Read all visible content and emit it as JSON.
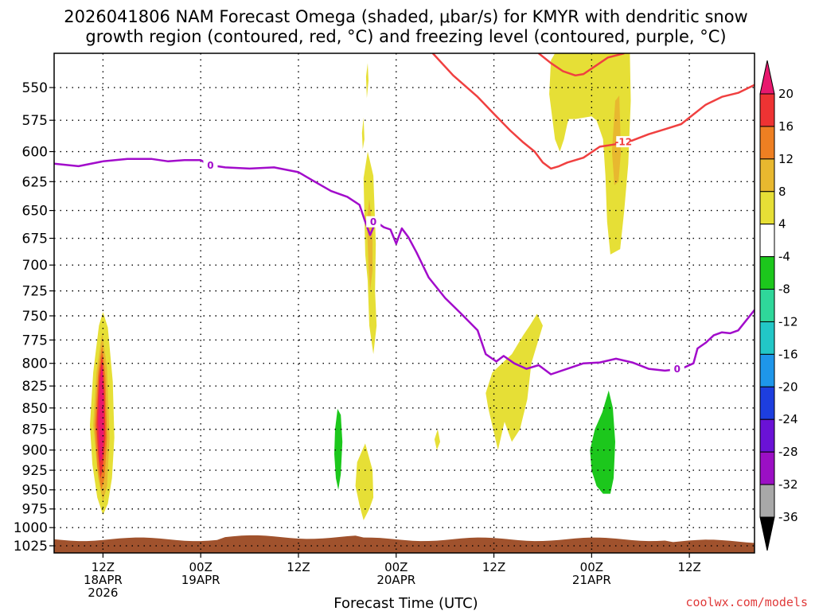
{
  "chart_data": {
    "type": "heatmap",
    "title_lines": [
      "2026041806 NAM Forecast Omega (shaded, μbar/s) for KMYR with dendritic snow",
      "growth region (contoured, red, °C) and freezing level (contoured, purple, °C)"
    ],
    "xlabel": "Forecast Time (UTC)",
    "x_range_hours": [
      0,
      86
    ],
    "y_range_hpa": [
      525,
      1035
    ],
    "y_ticks": [
      550,
      575,
      600,
      625,
      650,
      675,
      700,
      725,
      750,
      775,
      800,
      825,
      850,
      875,
      900,
      925,
      950,
      975,
      1000,
      1025
    ],
    "x_ticks": [
      {
        "hour": 6,
        "lines": [
          "12Z",
          "18APR",
          "2026"
        ]
      },
      {
        "hour": 18,
        "lines": [
          "00Z",
          "19APR"
        ]
      },
      {
        "hour": 30,
        "lines": [
          "12Z"
        ]
      },
      {
        "hour": 42,
        "lines": [
          "00Z",
          "20APR"
        ]
      },
      {
        "hour": 54,
        "lines": [
          "12Z"
        ]
      },
      {
        "hour": 66,
        "lines": [
          "00Z",
          "21APR"
        ]
      },
      {
        "hour": 78,
        "lines": [
          "12Z"
        ]
      }
    ],
    "colorbar": {
      "labels": [
        "20",
        "16",
        "12",
        "8",
        "4",
        "-4",
        "-8",
        "-12",
        "-16",
        "-20",
        "-24",
        "-28",
        "-32",
        "-36"
      ],
      "levels": [
        20,
        16,
        12,
        8,
        4,
        -4,
        -8,
        -12,
        -16,
        -20,
        -24,
        -28,
        -32,
        -36
      ],
      "colors": [
        "#e8186e",
        "#ee3333",
        "#ee7f22",
        "#e8b82f",
        "#e6df36",
        "#ffffff",
        "#1cc71c",
        "#2fd79a",
        "#22c7c7",
        "#1e96ea",
        "#1d3edf",
        "#6a12d6",
        "#9b0fc4",
        "#a8a8a8",
        "#000000"
      ]
    },
    "freezing_level": {
      "label": "0",
      "color": "#a20ccb",
      "points": [
        [
          0,
          610
        ],
        [
          3,
          612
        ],
        [
          6,
          608
        ],
        [
          9,
          606
        ],
        [
          12,
          606
        ],
        [
          14,
          608
        ],
        [
          16,
          607
        ],
        [
          18,
          607
        ],
        [
          19,
          611
        ],
        [
          21,
          613
        ],
        [
          24,
          614
        ],
        [
          27,
          613
        ],
        [
          30,
          617
        ],
        [
          32,
          625
        ],
        [
          34,
          633
        ],
        [
          36,
          638
        ],
        [
          37.5,
          645
        ],
        [
          38.2,
          660
        ],
        [
          38.8,
          672
        ],
        [
          39.5,
          660
        ],
        [
          40.5,
          665
        ],
        [
          41.3,
          667
        ],
        [
          42,
          680
        ],
        [
          42.7,
          666
        ],
        [
          43.5,
          674
        ],
        [
          44.5,
          688
        ],
        [
          46,
          712
        ],
        [
          48,
          732
        ],
        [
          50,
          748
        ],
        [
          52,
          765
        ],
        [
          53,
          790
        ],
        [
          54.3,
          798
        ],
        [
          55.2,
          792
        ],
        [
          56.5,
          800
        ],
        [
          58,
          806
        ],
        [
          59.5,
          802
        ],
        [
          61,
          812
        ],
        [
          63,
          806
        ],
        [
          65,
          800
        ],
        [
          67,
          799
        ],
        [
          69,
          795
        ],
        [
          71,
          799
        ],
        [
          73,
          806
        ],
        [
          75,
          808
        ],
        [
          77,
          806
        ],
        [
          78.5,
          800
        ],
        [
          79,
          784
        ],
        [
          80,
          778
        ],
        [
          81,
          770
        ],
        [
          82,
          767
        ],
        [
          83,
          768
        ],
        [
          84,
          765
        ],
        [
          86,
          744
        ]
      ]
    },
    "dgz_minus12": {
      "label": "-12",
      "color": "#f04040",
      "points": [
        [
          46.5,
          525
        ],
        [
          49,
          541
        ],
        [
          52,
          557
        ],
        [
          54,
          570
        ],
        [
          56,
          583
        ],
        [
          57.5,
          592
        ],
        [
          59,
          600
        ],
        [
          60,
          609
        ],
        [
          61,
          614
        ],
        [
          62,
          612
        ],
        [
          63,
          609
        ],
        [
          65,
          605
        ],
        [
          67,
          596
        ],
        [
          69,
          594
        ],
        [
          71,
          591
        ],
        [
          73,
          586
        ],
        [
          75,
          582
        ],
        [
          77,
          578
        ],
        [
          78,
          573
        ],
        [
          80,
          563
        ],
        [
          82,
          557
        ],
        [
          84,
          554
        ],
        [
          86,
          548
        ]
      ]
    },
    "dgz_top": {
      "color": "#f04040",
      "points": [
        [
          59.5,
          525
        ],
        [
          61,
          532
        ],
        [
          62.5,
          538
        ],
        [
          64,
          541
        ],
        [
          65,
          540
        ],
        [
          66.5,
          534
        ],
        [
          68,
          528
        ],
        [
          70,
          525
        ]
      ]
    },
    "omega_regions": [
      {
        "level": "4",
        "points": [
          [
            4.4,
            870
          ],
          [
            4.8,
            810
          ],
          [
            5.5,
            760
          ],
          [
            6.0,
            746
          ],
          [
            6.6,
            762
          ],
          [
            7.2,
            820
          ],
          [
            7.4,
            885
          ],
          [
            7.1,
            935
          ],
          [
            6.6,
            968
          ],
          [
            6.0,
            983
          ],
          [
            5.3,
            960
          ],
          [
            4.7,
            918
          ]
        ]
      },
      {
        "level": "8",
        "points": [
          [
            4.8,
            870
          ],
          [
            5.2,
            810
          ],
          [
            5.9,
            768
          ],
          [
            6.5,
            805
          ],
          [
            6.8,
            885
          ],
          [
            6.5,
            945
          ],
          [
            6.0,
            965
          ],
          [
            5.4,
            935
          ]
        ]
      },
      {
        "level": "12",
        "points": [
          [
            5.0,
            870
          ],
          [
            5.4,
            810
          ],
          [
            5.9,
            780
          ],
          [
            6.3,
            815
          ],
          [
            6.5,
            885
          ],
          [
            6.2,
            935
          ],
          [
            5.8,
            950
          ],
          [
            5.3,
            920
          ]
        ]
      },
      {
        "level": "16",
        "points": [
          [
            5.2,
            870
          ],
          [
            5.5,
            815
          ],
          [
            5.9,
            790
          ],
          [
            6.2,
            830
          ],
          [
            6.3,
            885
          ],
          [
            6.0,
            920
          ],
          [
            5.7,
            935
          ],
          [
            5.4,
            905
          ]
        ]
      },
      {
        "level": "20",
        "points": [
          [
            5.4,
            865
          ],
          [
            5.6,
            820
          ],
          [
            5.9,
            800
          ],
          [
            6.1,
            840
          ],
          [
            6.1,
            885
          ],
          [
            5.9,
            910
          ],
          [
            5.6,
            915
          ]
        ]
      },
      {
        "level": "-4",
        "points": [
          [
            32.5,
            748
          ],
          [
            33.5,
            734
          ],
          [
            34.2,
            722
          ],
          [
            34.4,
            745
          ],
          [
            34.4,
            790
          ],
          [
            35.3,
            848
          ],
          [
            36.0,
            862
          ],
          [
            36.8,
            888
          ],
          [
            36.4,
            922
          ],
          [
            36.0,
            940
          ],
          [
            36.2,
            960
          ],
          [
            35.7,
            975
          ],
          [
            35.0,
            987
          ],
          [
            34.5,
            975
          ],
          [
            34.0,
            952
          ],
          [
            33.8,
            922
          ],
          [
            33.5,
            885
          ],
          [
            33.3,
            860
          ],
          [
            32.6,
            842
          ],
          [
            31.2,
            830
          ],
          [
            30.8,
            790
          ],
          [
            31.0,
            764
          ],
          [
            31.5,
            753
          ]
        ]
      },
      {
        "level": "-8",
        "points": [
          [
            34.5,
            875
          ],
          [
            34.8,
            851
          ],
          [
            35.2,
            858
          ],
          [
            35.4,
            890
          ],
          [
            35.2,
            930
          ],
          [
            34.9,
            950
          ],
          [
            34.6,
            935
          ],
          [
            34.4,
            905
          ]
        ]
      },
      {
        "level": "-4",
        "points": [
          [
            33.8,
            640
          ],
          [
            34.2,
            605
          ],
          [
            34.6,
            598
          ],
          [
            34.9,
            640
          ],
          [
            34.7,
            675
          ],
          [
            34.3,
            682
          ],
          [
            33.9,
            672
          ]
        ]
      },
      {
        "level": "4",
        "points": [
          [
            38.0,
            622
          ],
          [
            38.5,
            600
          ],
          [
            39.2,
            620
          ],
          [
            39.5,
            680
          ],
          [
            39.4,
            725
          ],
          [
            39.6,
            760
          ],
          [
            39.2,
            790
          ],
          [
            38.7,
            760
          ],
          [
            38.5,
            715
          ],
          [
            38.2,
            690
          ]
        ]
      },
      {
        "level": "8",
        "points": [
          [
            38.4,
            660
          ],
          [
            38.7,
            640
          ],
          [
            39.1,
            665
          ],
          [
            39.1,
            705
          ],
          [
            38.8,
            725
          ],
          [
            38.6,
            700
          ]
        ]
      },
      {
        "level": "-4",
        "points": [
          [
            40.0,
            742
          ],
          [
            40.4,
            718
          ],
          [
            40.8,
            740
          ],
          [
            41.0,
            770
          ],
          [
            40.8,
            800
          ],
          [
            40.4,
            790
          ],
          [
            40.1,
            768
          ]
        ]
      },
      {
        "level": "-4",
        "points": [
          [
            41.5,
            690
          ],
          [
            41.8,
            658
          ],
          [
            42.3,
            665
          ],
          [
            42.6,
            705
          ],
          [
            42.5,
            755
          ],
          [
            42.1,
            778
          ],
          [
            41.7,
            760
          ],
          [
            41.5,
            725
          ]
        ]
      },
      {
        "level": "4",
        "points": [
          [
            37.2,
            915
          ],
          [
            38.2,
            892
          ],
          [
            39.1,
            925
          ],
          [
            39.2,
            960
          ],
          [
            38.7,
            975
          ],
          [
            38.0,
            990
          ],
          [
            37.5,
            970
          ],
          [
            37.0,
            945
          ]
        ]
      },
      {
        "level": "4",
        "points": [
          [
            38.3,
            542
          ],
          [
            38.5,
            532
          ],
          [
            38.6,
            545
          ],
          [
            38.4,
            558
          ]
        ]
      },
      {
        "level": "4",
        "points": [
          [
            37.8,
            585
          ],
          [
            38.0,
            573
          ],
          [
            38.1,
            590
          ],
          [
            37.9,
            598
          ]
        ]
      },
      {
        "level": "4",
        "points": [
          [
            46.7,
            887
          ],
          [
            47.1,
            875
          ],
          [
            47.4,
            890
          ],
          [
            47.0,
            900
          ]
        ]
      },
      {
        "level": "4",
        "points": [
          [
            53.0,
            833
          ],
          [
            53.8,
            810
          ],
          [
            55.0,
            800
          ],
          [
            56.2,
            790
          ],
          [
            57.6,
            770
          ],
          [
            58.4,
            760
          ],
          [
            59.3,
            748
          ],
          [
            60.0,
            760
          ],
          [
            58.6,
            800
          ],
          [
            58.1,
            840
          ],
          [
            57.2,
            875
          ],
          [
            56.2,
            890
          ],
          [
            55.3,
            866
          ],
          [
            54.5,
            900
          ],
          [
            53.3,
            850
          ]
        ]
      },
      {
        "level": "-4",
        "points": [
          [
            63.8,
            890
          ],
          [
            64.5,
            868
          ],
          [
            65.0,
            835
          ],
          [
            65.7,
            825
          ],
          [
            66.5,
            800
          ],
          [
            68.2,
            776
          ],
          [
            69.0,
            800
          ],
          [
            70.5,
            830
          ],
          [
            71.0,
            850
          ],
          [
            70.2,
            870
          ],
          [
            69.7,
            905
          ],
          [
            69.5,
            940
          ],
          [
            69.7,
            975
          ],
          [
            68.0,
            992
          ],
          [
            66.5,
            990
          ],
          [
            65.5,
            980
          ],
          [
            64.8,
            960
          ],
          [
            64.2,
            922
          ]
        ]
      },
      {
        "level": "-8",
        "points": [
          [
            65.8,
            900
          ],
          [
            66.4,
            875
          ],
          [
            67.3,
            855
          ],
          [
            68.1,
            830
          ],
          [
            68.6,
            850
          ],
          [
            68.9,
            890
          ],
          [
            68.7,
            935
          ],
          [
            68.3,
            955
          ],
          [
            67.4,
            955
          ],
          [
            66.6,
            945
          ],
          [
            66.0,
            925
          ]
        ]
      },
      {
        "level": "4",
        "points": [
          [
            60.8,
            555
          ],
          [
            61.0,
            530
          ],
          [
            61.5,
            525
          ],
          [
            70.7,
            525
          ],
          [
            70.8,
            560
          ],
          [
            70.5,
            610
          ],
          [
            70.0,
            650
          ],
          [
            69.5,
            685
          ],
          [
            68.3,
            690
          ],
          [
            67.9,
            660
          ],
          [
            67.7,
            620
          ],
          [
            67.4,
            590
          ],
          [
            66.6,
            575
          ],
          [
            66.0,
            572
          ],
          [
            64.0,
            574
          ],
          [
            63.2,
            574
          ],
          [
            63.0,
            578
          ],
          [
            62.6,
            590
          ],
          [
            62.1,
            600
          ],
          [
            61.5,
            590
          ]
        ]
      },
      {
        "level": "8",
        "points": [
          [
            68.5,
            600
          ],
          [
            68.9,
            560
          ],
          [
            69.4,
            556
          ],
          [
            69.6,
            600
          ],
          [
            69.3,
            625
          ],
          [
            68.8,
            628
          ]
        ]
      }
    ],
    "terrain_color": "#a0522d",
    "credit": "coolwx.com/models"
  }
}
